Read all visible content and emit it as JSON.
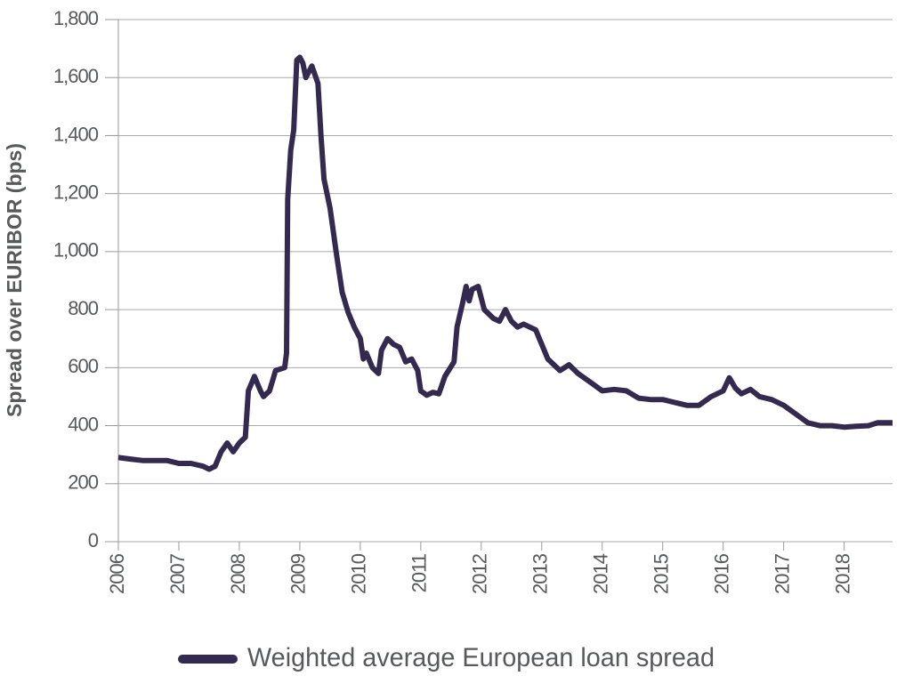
{
  "chart_data": {
    "type": "line",
    "y_label": "Spread over EURIBOR (bps)",
    "x": [
      2006.0,
      2006.2,
      2006.4,
      2006.6,
      2006.8,
      2007.0,
      2007.2,
      2007.4,
      2007.5,
      2007.6,
      2007.7,
      2007.8,
      2007.9,
      2008.0,
      2008.1,
      2008.15,
      2008.25,
      2008.35,
      2008.4,
      2008.5,
      2008.6,
      2008.75,
      2008.78,
      2008.8,
      2008.85,
      2008.9,
      2008.95,
      2009.0,
      2009.05,
      2009.1,
      2009.2,
      2009.3,
      2009.35,
      2009.4,
      2009.5,
      2009.6,
      2009.7,
      2009.8,
      2009.9,
      2010.0,
      2010.05,
      2010.1,
      2010.2,
      2010.3,
      2010.35,
      2010.45,
      2010.55,
      2010.65,
      2010.75,
      2010.85,
      2010.95,
      2011.0,
      2011.1,
      2011.2,
      2011.3,
      2011.4,
      2011.55,
      2011.6,
      2011.7,
      2011.75,
      2011.8,
      2011.85,
      2011.95,
      2012.05,
      2012.2,
      2012.3,
      2012.4,
      2012.5,
      2012.6,
      2012.7,
      2012.8,
      2012.9,
      2013.0,
      2013.1,
      2013.3,
      2013.45,
      2013.6,
      2013.8,
      2014.0,
      2014.2,
      2014.4,
      2014.6,
      2014.8,
      2015.0,
      2015.2,
      2015.4,
      2015.6,
      2015.8,
      2016.0,
      2016.1,
      2016.2,
      2016.3,
      2016.45,
      2016.6,
      2016.8,
      2017.0,
      2017.2,
      2017.4,
      2017.6,
      2017.8,
      2018.0,
      2018.2,
      2018.4,
      2018.55,
      2018.8
    ],
    "series": [
      {
        "name": "Weighted average European loan spread",
        "color": "#342a4f",
        "values": [
          290,
          285,
          280,
          280,
          280,
          270,
          270,
          260,
          250,
          260,
          310,
          340,
          310,
          340,
          360,
          520,
          570,
          520,
          500,
          520,
          590,
          600,
          650,
          1180,
          1350,
          1420,
          1660,
          1670,
          1650,
          1600,
          1640,
          1580,
          1400,
          1250,
          1150,
          1000,
          860,
          790,
          740,
          700,
          630,
          650,
          600,
          580,
          660,
          700,
          680,
          670,
          620,
          630,
          590,
          520,
          505,
          515,
          510,
          570,
          620,
          740,
          830,
          880,
          830,
          870,
          880,
          800,
          770,
          760,
          800,
          760,
          740,
          750,
          740,
          730,
          680,
          630,
          590,
          610,
          580,
          550,
          520,
          525,
          520,
          495,
          490,
          490,
          480,
          470,
          470,
          500,
          520,
          565,
          530,
          510,
          525,
          500,
          490,
          470,
          440,
          410,
          400,
          400,
          395,
          398,
          400,
          410,
          410
        ]
      }
    ],
    "xlim": [
      2006,
      2018.8
    ],
    "xticks": [
      2006,
      2007,
      2008,
      2009,
      2010,
      2011,
      2012,
      2013,
      2014,
      2015,
      2016,
      2017,
      2018
    ],
    "ylim": [
      0,
      1800
    ],
    "yticks": [
      0,
      200,
      400,
      600,
      800,
      {
        "value": 1000,
        "label": "1,000"
      },
      {
        "value": 1200,
        "label": "1,200"
      },
      {
        "value": 1400,
        "label": "1,400"
      },
      {
        "value": 1600,
        "label": "1,600"
      },
      {
        "value": 1800,
        "label": "1,800"
      }
    ],
    "grid": true,
    "legend": "bottom"
  }
}
